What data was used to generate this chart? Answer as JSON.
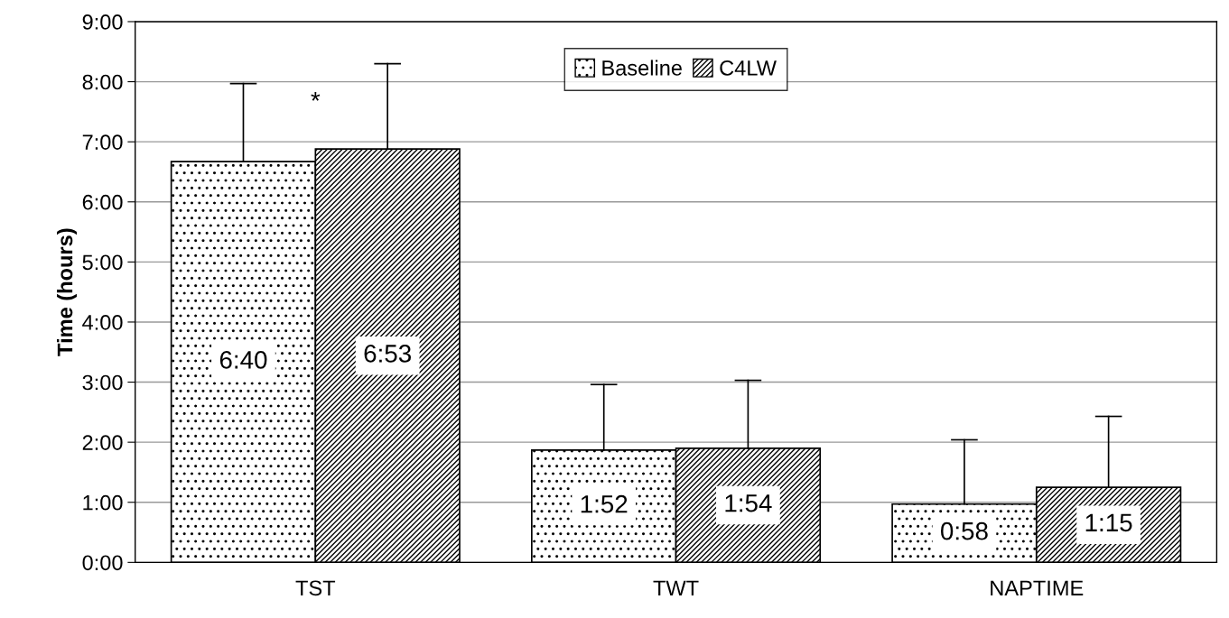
{
  "chart_data": {
    "type": "bar",
    "ylabel": "Time (hours)",
    "categories": [
      "TST",
      "TWT",
      "NAPTIME"
    ],
    "series": [
      {
        "name": "Baseline",
        "color": "#000000",
        "values": [
          6.67,
          1.87,
          0.97
        ],
        "errors": [
          [
            6.67,
            7.97
          ],
          [
            1.87,
            2.96
          ],
          [
            0.97,
            2.04
          ]
        ],
        "value_labels": [
          "6:40",
          "1:52",
          "0:58"
        ]
      },
      {
        "name": "C4LW",
        "color": "#000000",
        "values": [
          6.88,
          1.9,
          1.25
        ],
        "errors": [
          [
            6.88,
            8.3
          ],
          [
            1.9,
            3.03
          ],
          [
            1.25,
            2.43
          ]
        ],
        "value_labels": [
          "6:53",
          "1:54",
          "1:15"
        ]
      }
    ],
    "ylim": [
      0,
      9
    ],
    "yticks": [
      {
        "value": 0,
        "label": "0:00"
      },
      {
        "value": 1,
        "label": "1:00"
      },
      {
        "value": 2,
        "label": "2:00"
      },
      {
        "value": 3,
        "label": "3:00"
      },
      {
        "value": 4,
        "label": "4:00"
      },
      {
        "value": 5,
        "label": "5:00"
      },
      {
        "value": 6,
        "label": "6:00"
      },
      {
        "value": 7,
        "label": "7:00"
      },
      {
        "value": 8,
        "label": "8:00"
      },
      {
        "value": 9,
        "label": "9:00"
      }
    ],
    "annotations": [
      "*"
    ],
    "grid": "y",
    "legend": "top"
  }
}
